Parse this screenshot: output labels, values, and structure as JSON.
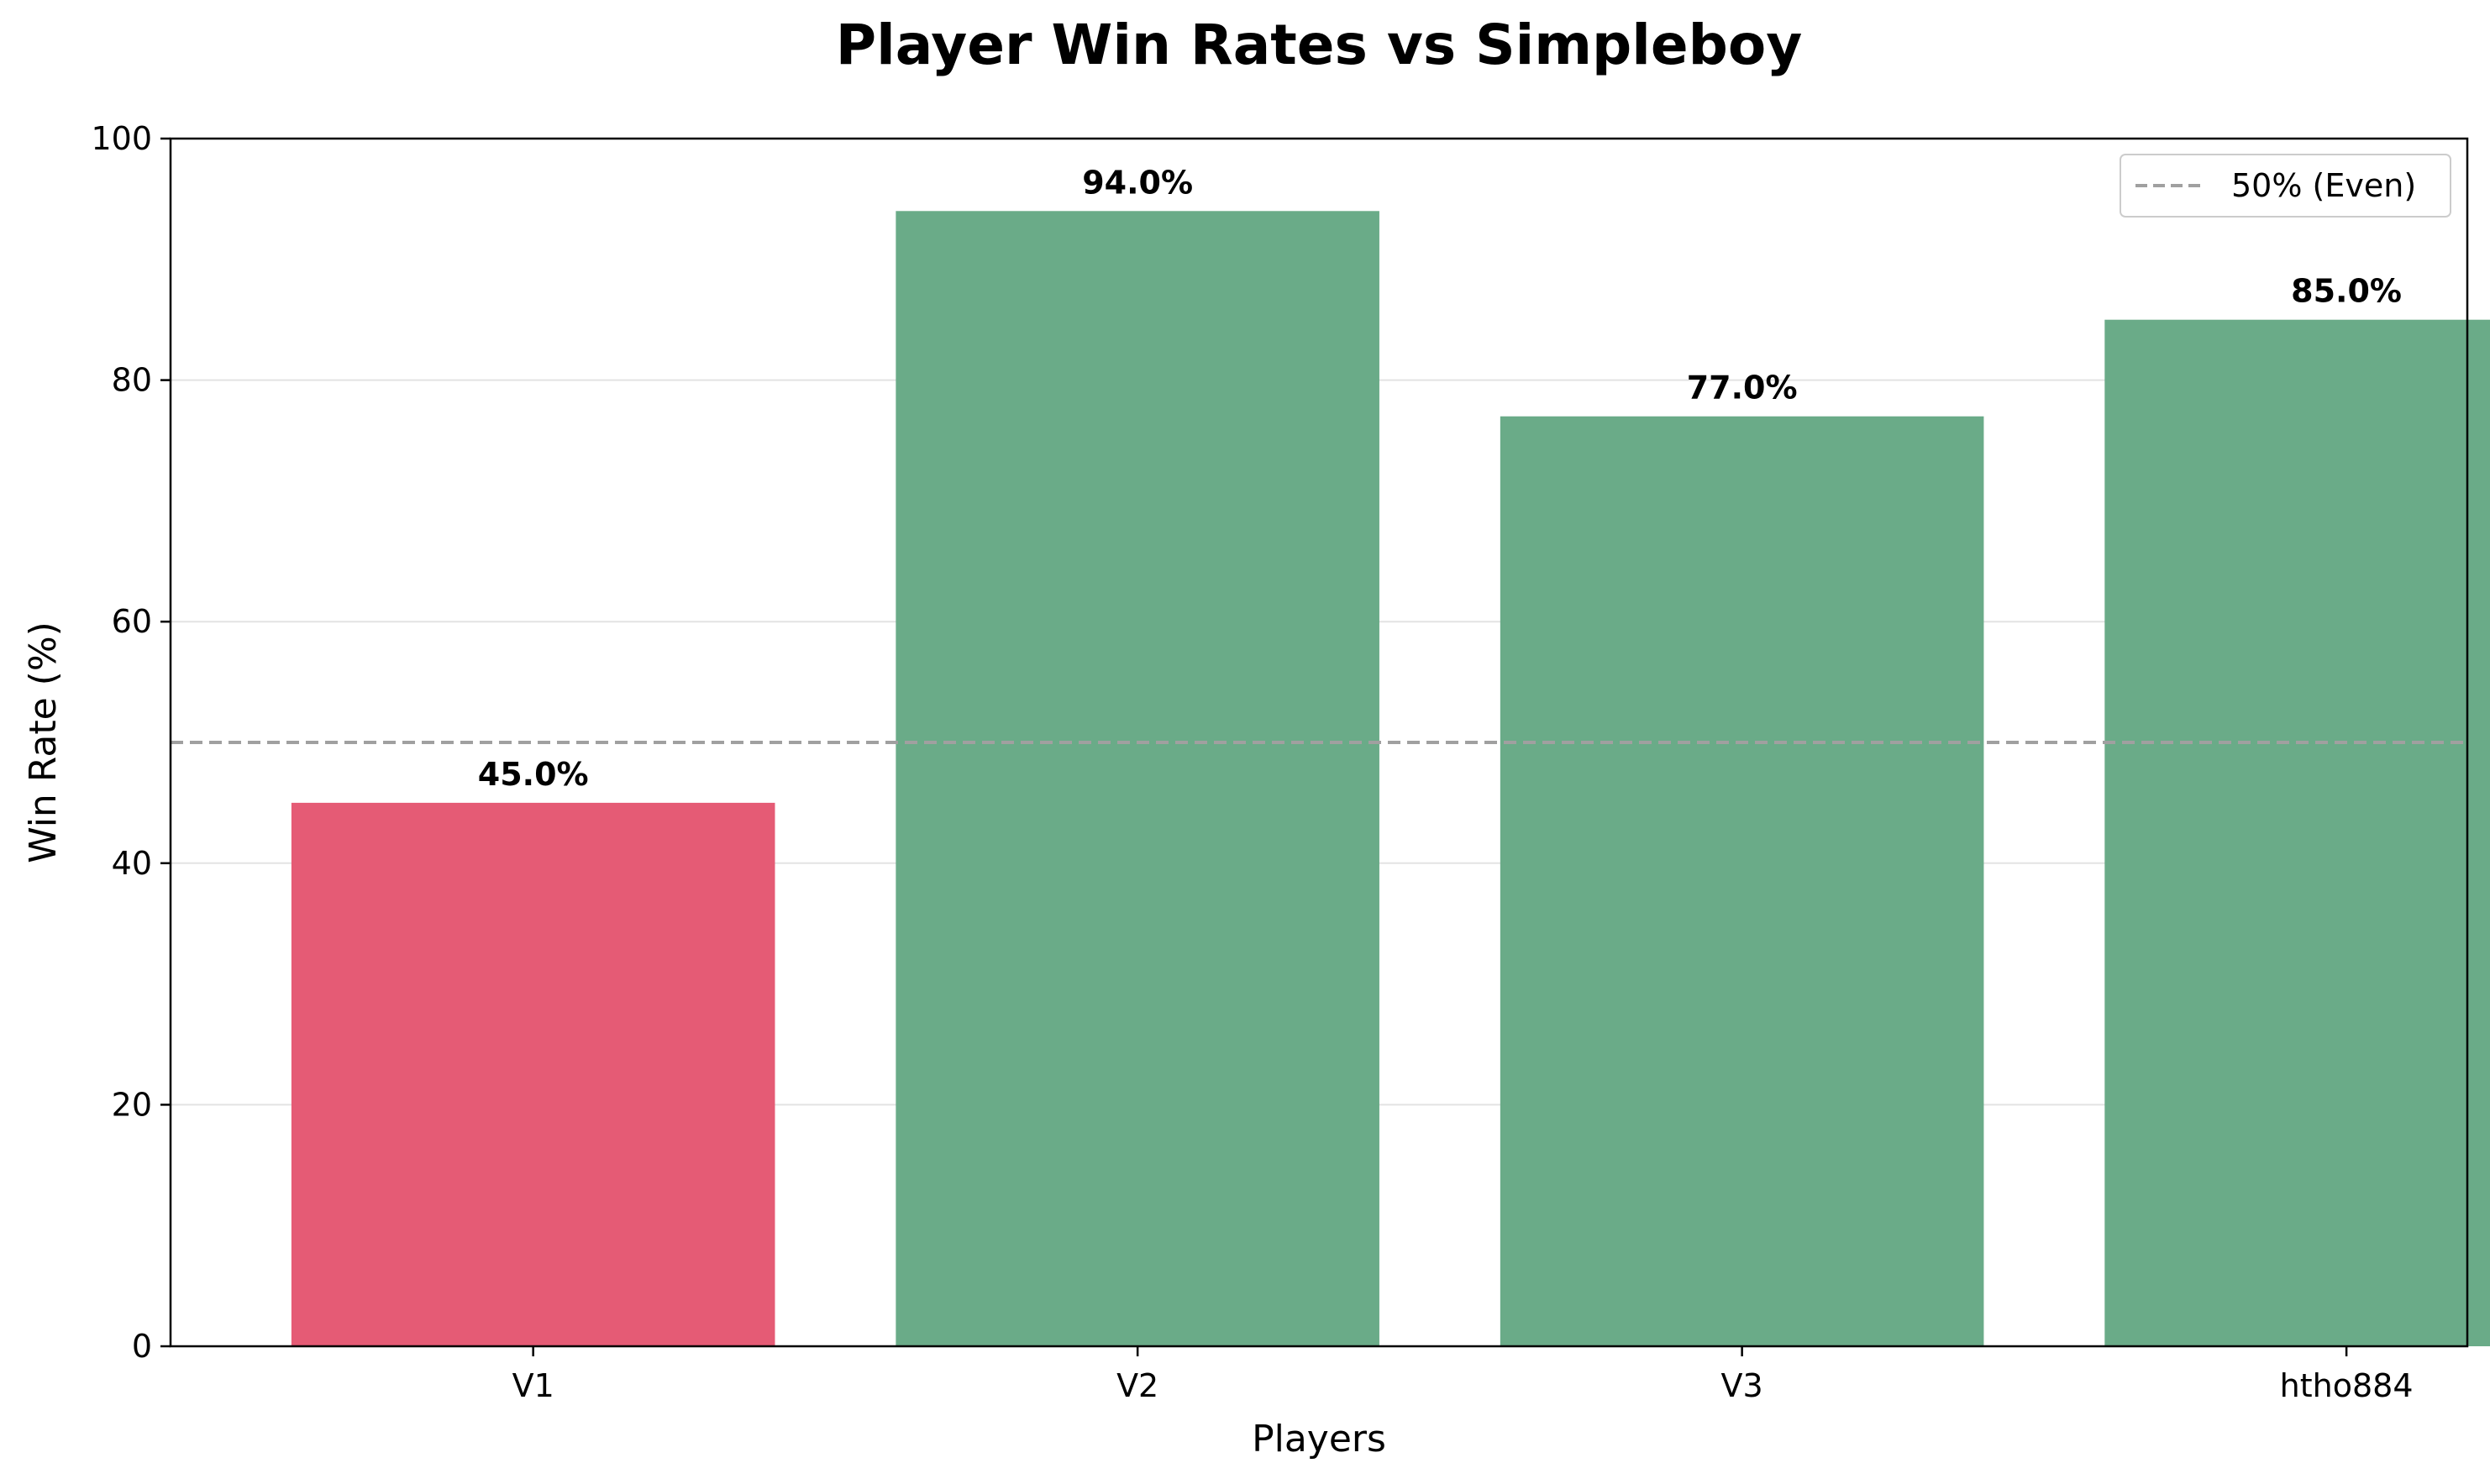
{
  "chart_data": {
    "type": "bar",
    "title": "Player Win Rates vs Simpleboy",
    "xlabel": "Players",
    "ylabel": "Win Rate (%)",
    "categories": [
      "V1",
      "V2",
      "V3",
      "htho884"
    ],
    "values": [
      45.0,
      94.0,
      77.0,
      85.0
    ],
    "value_labels": [
      "45.0%",
      "94.0%",
      "77.0%",
      "85.0%"
    ],
    "bar_colors": [
      "#e55b75",
      "#6aab88",
      "#6aab88",
      "#6aab88"
    ],
    "ylim": [
      0,
      100
    ],
    "yticks": [
      0,
      20,
      40,
      60,
      80,
      100
    ],
    "grid": "horizontal",
    "reference_line": {
      "value": 50,
      "label": "50% (Even)",
      "color": "#a0a0a0",
      "style": "dashed"
    },
    "legend_position": "top-right"
  }
}
